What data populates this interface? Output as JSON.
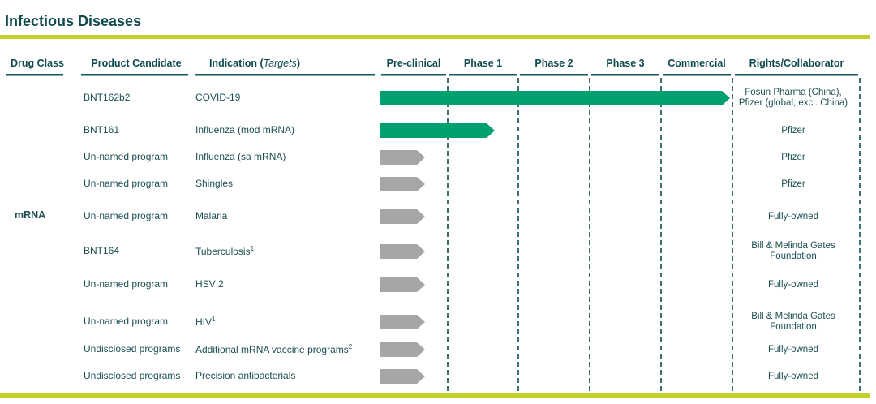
{
  "title": "Infectious Diseases",
  "headers": {
    "drug_class": "Drug Class",
    "product": "Product Candidate",
    "indication": [
      "Indication (",
      "Targets",
      ")"
    ],
    "stages": [
      "Pre-clinical",
      "Phase 1",
      "Phase 2",
      "Phase 3",
      "Commercial"
    ],
    "rights": "Rights/Collaborator"
  },
  "drug_class": "mRNA",
  "rows": [
    {
      "product": "BNT162b2",
      "indication": "COVID-19",
      "rights": [
        "Fosun Pharma (China),",
        "Pfizer (global, excl. China)"
      ]
    },
    {
      "product": "BNT161",
      "indication": "Influenza (mod mRNA)",
      "rights": [
        "Pfizer"
      ]
    },
    {
      "product": "Un-named program",
      "indication": "Influenza (sa mRNA)",
      "rights": [
        "Pfizer"
      ]
    },
    {
      "product": "Un-named program",
      "indication": "Shingles",
      "rights": [
        "Pfizer"
      ]
    },
    {
      "product": "Un-named program",
      "indication": "Malaria",
      "rights": [
        "Fully-owned"
      ]
    },
    {
      "product": "BNT164",
      "indication": "Tuberculosis",
      "note": "1",
      "rights": [
        "Bill & Melinda Gates",
        "Foundation"
      ]
    },
    {
      "product": "Un-named program",
      "indication": "HSV 2",
      "rights": [
        "Fully-owned"
      ]
    },
    {
      "product": "Un-named program",
      "indication": "HIV",
      "note": "1",
      "rights": [
        "Bill & Melinda Gates",
        "Foundation"
      ]
    },
    {
      "product": "Undisclosed programs",
      "indication": "Additional mRNA vaccine programs",
      "note": "2",
      "rights": [
        "Fully-owned"
      ]
    },
    {
      "product": "Undisclosed programs",
      "indication": "Precision antibacterials",
      "rights": [
        "Fully-owned"
      ]
    }
  ]
}
